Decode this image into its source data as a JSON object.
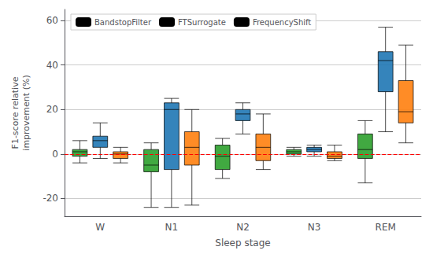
{
  "chart_data": {
    "type": "boxplot",
    "title": "",
    "xlabel": "Sleep stage",
    "ylabel": "F1-score relative\nimprovement (%)",
    "categories": [
      "W",
      "N1",
      "N2",
      "N3",
      "REM"
    ],
    "series": [
      {
        "name": "BandstopFilter",
        "color": "#2ca02c",
        "values": [
          [
            -4,
            -1,
            1,
            2,
            6
          ],
          [
            -24,
            -8,
            -5,
            2,
            5
          ],
          [
            -11,
            -7,
            -1,
            4,
            7
          ],
          [
            -1,
            0,
            1,
            2,
            3
          ],
          [
            -13,
            -2,
            2,
            9,
            15
          ]
        ]
      },
      {
        "name": "FTSurrogate",
        "color": "#1f77b4",
        "values": [
          [
            -2,
            3,
            6,
            8,
            14
          ],
          [
            -24,
            -7,
            20,
            23,
            25
          ],
          [
            9,
            15,
            18,
            20,
            23
          ],
          [
            -1,
            1,
            2,
            3,
            4
          ],
          [
            10,
            28,
            42,
            46,
            57
          ]
        ]
      },
      {
        "name": "FrequencyShift",
        "color": "#ff7f0e",
        "values": [
          [
            -4,
            -2,
            0,
            1,
            3
          ],
          [
            -23,
            -5,
            3,
            10,
            20
          ],
          [
            -7,
            -3,
            3,
            9,
            18
          ],
          [
            -3,
            -2,
            -1,
            1,
            4
          ],
          [
            5,
            14,
            19,
            33,
            49
          ]
        ]
      }
    ],
    "reference_line": {
      "value": 0,
      "color": "red",
      "line_style": "dashed"
    },
    "ylim": [
      -28,
      65
    ],
    "yticks": [
      -20,
      0,
      20,
      40,
      60
    ],
    "grid": true,
    "legend": "upper left"
  }
}
